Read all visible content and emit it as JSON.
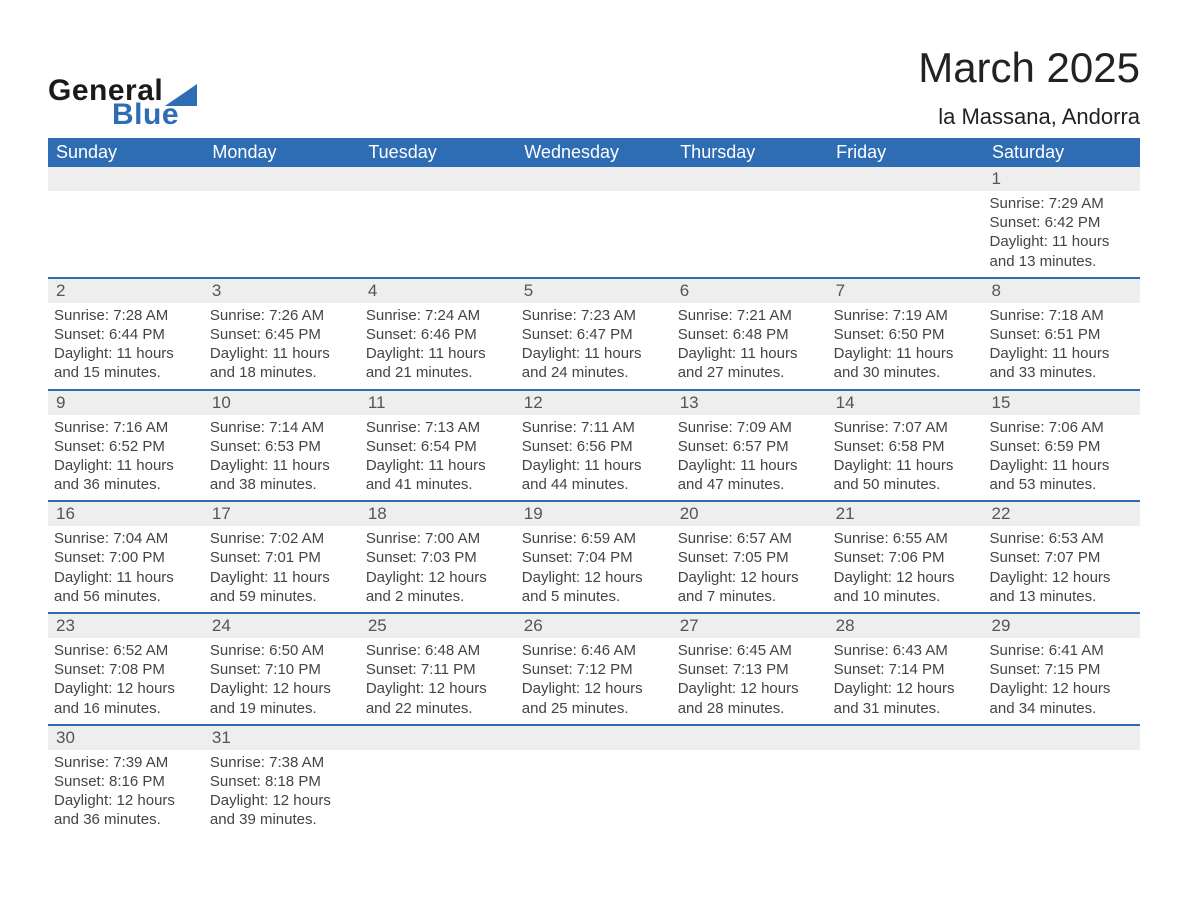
{
  "logo": {
    "text_general": "General",
    "text_blue": "Blue"
  },
  "title": "March 2025",
  "location": "la Massana, Andorra",
  "colors": {
    "header_bg": "#2e6cb3",
    "header_text": "#ffffff",
    "daynum_bg": "#eeeeee",
    "body_text": "#444444",
    "row_divider": "#2e6cb3",
    "page_bg": "#ffffff"
  },
  "typography": {
    "title_fontsize_pt": 32,
    "location_fontsize_pt": 17,
    "weekday_fontsize_pt": 14,
    "daynum_fontsize_pt": 13,
    "body_fontsize_pt": 11,
    "font_family": "Arial, Helvetica, sans-serif"
  },
  "layout": {
    "columns": 7,
    "rows": 6,
    "leading_blanks": 6
  },
  "weekdays": [
    "Sunday",
    "Monday",
    "Tuesday",
    "Wednesday",
    "Thursday",
    "Friday",
    "Saturday"
  ],
  "days": [
    {
      "n": 1,
      "sunrise": "7:29 AM",
      "sunset": "6:42 PM",
      "daylight": "11 hours and 13 minutes."
    },
    {
      "n": 2,
      "sunrise": "7:28 AM",
      "sunset": "6:44 PM",
      "daylight": "11 hours and 15 minutes."
    },
    {
      "n": 3,
      "sunrise": "7:26 AM",
      "sunset": "6:45 PM",
      "daylight": "11 hours and 18 minutes."
    },
    {
      "n": 4,
      "sunrise": "7:24 AM",
      "sunset": "6:46 PM",
      "daylight": "11 hours and 21 minutes."
    },
    {
      "n": 5,
      "sunrise": "7:23 AM",
      "sunset": "6:47 PM",
      "daylight": "11 hours and 24 minutes."
    },
    {
      "n": 6,
      "sunrise": "7:21 AM",
      "sunset": "6:48 PM",
      "daylight": "11 hours and 27 minutes."
    },
    {
      "n": 7,
      "sunrise": "7:19 AM",
      "sunset": "6:50 PM",
      "daylight": "11 hours and 30 minutes."
    },
    {
      "n": 8,
      "sunrise": "7:18 AM",
      "sunset": "6:51 PM",
      "daylight": "11 hours and 33 minutes."
    },
    {
      "n": 9,
      "sunrise": "7:16 AM",
      "sunset": "6:52 PM",
      "daylight": "11 hours and 36 minutes."
    },
    {
      "n": 10,
      "sunrise": "7:14 AM",
      "sunset": "6:53 PM",
      "daylight": "11 hours and 38 minutes."
    },
    {
      "n": 11,
      "sunrise": "7:13 AM",
      "sunset": "6:54 PM",
      "daylight": "11 hours and 41 minutes."
    },
    {
      "n": 12,
      "sunrise": "7:11 AM",
      "sunset": "6:56 PM",
      "daylight": "11 hours and 44 minutes."
    },
    {
      "n": 13,
      "sunrise": "7:09 AM",
      "sunset": "6:57 PM",
      "daylight": "11 hours and 47 minutes."
    },
    {
      "n": 14,
      "sunrise": "7:07 AM",
      "sunset": "6:58 PM",
      "daylight": "11 hours and 50 minutes."
    },
    {
      "n": 15,
      "sunrise": "7:06 AM",
      "sunset": "6:59 PM",
      "daylight": "11 hours and 53 minutes."
    },
    {
      "n": 16,
      "sunrise": "7:04 AM",
      "sunset": "7:00 PM",
      "daylight": "11 hours and 56 minutes."
    },
    {
      "n": 17,
      "sunrise": "7:02 AM",
      "sunset": "7:01 PM",
      "daylight": "11 hours and 59 minutes."
    },
    {
      "n": 18,
      "sunrise": "7:00 AM",
      "sunset": "7:03 PM",
      "daylight": "12 hours and 2 minutes."
    },
    {
      "n": 19,
      "sunrise": "6:59 AM",
      "sunset": "7:04 PM",
      "daylight": "12 hours and 5 minutes."
    },
    {
      "n": 20,
      "sunrise": "6:57 AM",
      "sunset": "7:05 PM",
      "daylight": "12 hours and 7 minutes."
    },
    {
      "n": 21,
      "sunrise": "6:55 AM",
      "sunset": "7:06 PM",
      "daylight": "12 hours and 10 minutes."
    },
    {
      "n": 22,
      "sunrise": "6:53 AM",
      "sunset": "7:07 PM",
      "daylight": "12 hours and 13 minutes."
    },
    {
      "n": 23,
      "sunrise": "6:52 AM",
      "sunset": "7:08 PM",
      "daylight": "12 hours and 16 minutes."
    },
    {
      "n": 24,
      "sunrise": "6:50 AM",
      "sunset": "7:10 PM",
      "daylight": "12 hours and 19 minutes."
    },
    {
      "n": 25,
      "sunrise": "6:48 AM",
      "sunset": "7:11 PM",
      "daylight": "12 hours and 22 minutes."
    },
    {
      "n": 26,
      "sunrise": "6:46 AM",
      "sunset": "7:12 PM",
      "daylight": "12 hours and 25 minutes."
    },
    {
      "n": 27,
      "sunrise": "6:45 AM",
      "sunset": "7:13 PM",
      "daylight": "12 hours and 28 minutes."
    },
    {
      "n": 28,
      "sunrise": "6:43 AM",
      "sunset": "7:14 PM",
      "daylight": "12 hours and 31 minutes."
    },
    {
      "n": 29,
      "sunrise": "6:41 AM",
      "sunset": "7:15 PM",
      "daylight": "12 hours and 34 minutes."
    },
    {
      "n": 30,
      "sunrise": "7:39 AM",
      "sunset": "8:16 PM",
      "daylight": "12 hours and 36 minutes."
    },
    {
      "n": 31,
      "sunrise": "7:38 AM",
      "sunset": "8:18 PM",
      "daylight": "12 hours and 39 minutes."
    }
  ],
  "labels": {
    "sunrise": "Sunrise:",
    "sunset": "Sunset:",
    "daylight": "Daylight:"
  }
}
